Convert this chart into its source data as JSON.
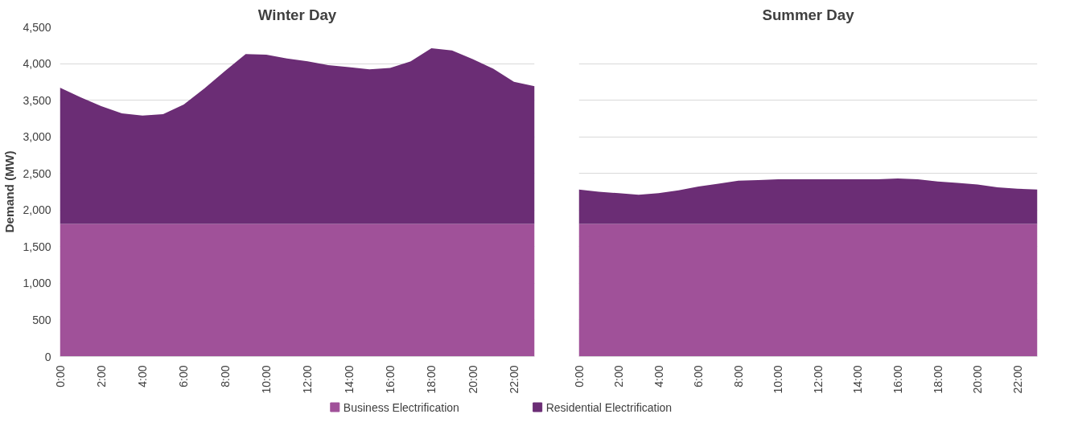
{
  "chart_data": [
    {
      "type": "area",
      "title": "Winter Day",
      "ylabel": "Demand (MW)",
      "stacked": true,
      "grid": "y",
      "legend": "bottom",
      "x": [
        0,
        1,
        2,
        3,
        4,
        5,
        6,
        7,
        8,
        9,
        10,
        11,
        12,
        13,
        14,
        15,
        16,
        17,
        18,
        19,
        20,
        21,
        22,
        23
      ],
      "xlim": [
        0,
        23
      ],
      "xticks": [
        {
          "value": 0,
          "label": "0:00"
        },
        {
          "value": 2,
          "label": "2:00"
        },
        {
          "value": 4,
          "label": "4:00"
        },
        {
          "value": 6,
          "label": "6:00"
        },
        {
          "value": 8,
          "label": "8:00"
        },
        {
          "value": 10,
          "label": "10:00"
        },
        {
          "value": 12,
          "label": "12:00"
        },
        {
          "value": 14,
          "label": "14:00"
        },
        {
          "value": 16,
          "label": "16:00"
        },
        {
          "value": 18,
          "label": "18:00"
        },
        {
          "value": 20,
          "label": "20:00"
        },
        {
          "value": 22,
          "label": "22:00"
        }
      ],
      "ylim": [
        0,
        4500
      ],
      "yticks": [
        {
          "value": 0,
          "label": "0"
        },
        {
          "value": 500,
          "label": "500"
        },
        {
          "value": 1000,
          "label": "1,000"
        },
        {
          "value": 1500,
          "label": "1,500"
        },
        {
          "value": 2000,
          "label": "2,000"
        },
        {
          "value": 2500,
          "label": "2,500"
        },
        {
          "value": 3000,
          "label": "3,000"
        },
        {
          "value": 3500,
          "label": "3,500"
        },
        {
          "value": 4000,
          "label": "4,000"
        },
        {
          "value": 4500,
          "label": "4,500"
        }
      ],
      "series": [
        {
          "name": "Business Electrification",
          "color": "#a05199",
          "values": [
            1810,
            1810,
            1810,
            1810,
            1810,
            1810,
            1810,
            1810,
            1810,
            1810,
            1810,
            1810,
            1810,
            1810,
            1810,
            1810,
            1810,
            1810,
            1810,
            1810,
            1810,
            1810,
            1810,
            1810
          ]
        },
        {
          "name": "Residential Electrification",
          "color": "#6b2d75",
          "values": [
            1860,
            1730,
            1610,
            1510,
            1480,
            1500,
            1630,
            1850,
            2090,
            2320,
            2310,
            2260,
            2220,
            2170,
            2140,
            2110,
            2130,
            2220,
            2400,
            2370,
            2250,
            2120,
            1940,
            1880
          ]
        }
      ]
    },
    {
      "type": "area",
      "title": "Summer Day",
      "stacked": true,
      "grid": "y",
      "tick_labels": "x",
      "x": [
        0,
        1,
        2,
        3,
        4,
        5,
        6,
        7,
        8,
        9,
        10,
        11,
        12,
        13,
        14,
        15,
        16,
        17,
        18,
        19,
        20,
        21,
        22,
        23
      ],
      "xlim": [
        0,
        23
      ],
      "xticks": [
        {
          "value": 0,
          "label": "0:00"
        },
        {
          "value": 2,
          "label": "2:00"
        },
        {
          "value": 4,
          "label": "4:00"
        },
        {
          "value": 6,
          "label": "6:00"
        },
        {
          "value": 8,
          "label": "8:00"
        },
        {
          "value": 10,
          "label": "10:00"
        },
        {
          "value": 12,
          "label": "12:00"
        },
        {
          "value": 14,
          "label": "14:00"
        },
        {
          "value": 16,
          "label": "16:00"
        },
        {
          "value": 18,
          "label": "18:00"
        },
        {
          "value": 20,
          "label": "20:00"
        },
        {
          "value": 22,
          "label": "22:00"
        }
      ],
      "ylim": [
        0,
        4500
      ],
      "yticks": [
        0,
        500,
        1000,
        1500,
        2000,
        2500,
        3000,
        3500,
        4000,
        4500
      ],
      "series": [
        {
          "color": "#a05199",
          "values": [
            1810,
            1810,
            1810,
            1810,
            1810,
            1810,
            1810,
            1810,
            1810,
            1810,
            1810,
            1810,
            1810,
            1810,
            1810,
            1810,
            1810,
            1810,
            1810,
            1810,
            1810,
            1810,
            1810,
            1810
          ]
        },
        {
          "color": "#6b2d75",
          "values": [
            470,
            440,
            420,
            400,
            420,
            460,
            510,
            550,
            590,
            600,
            610,
            610,
            610,
            610,
            610,
            610,
            620,
            610,
            580,
            560,
            540,
            500,
            480,
            470
          ]
        }
      ]
    }
  ]
}
